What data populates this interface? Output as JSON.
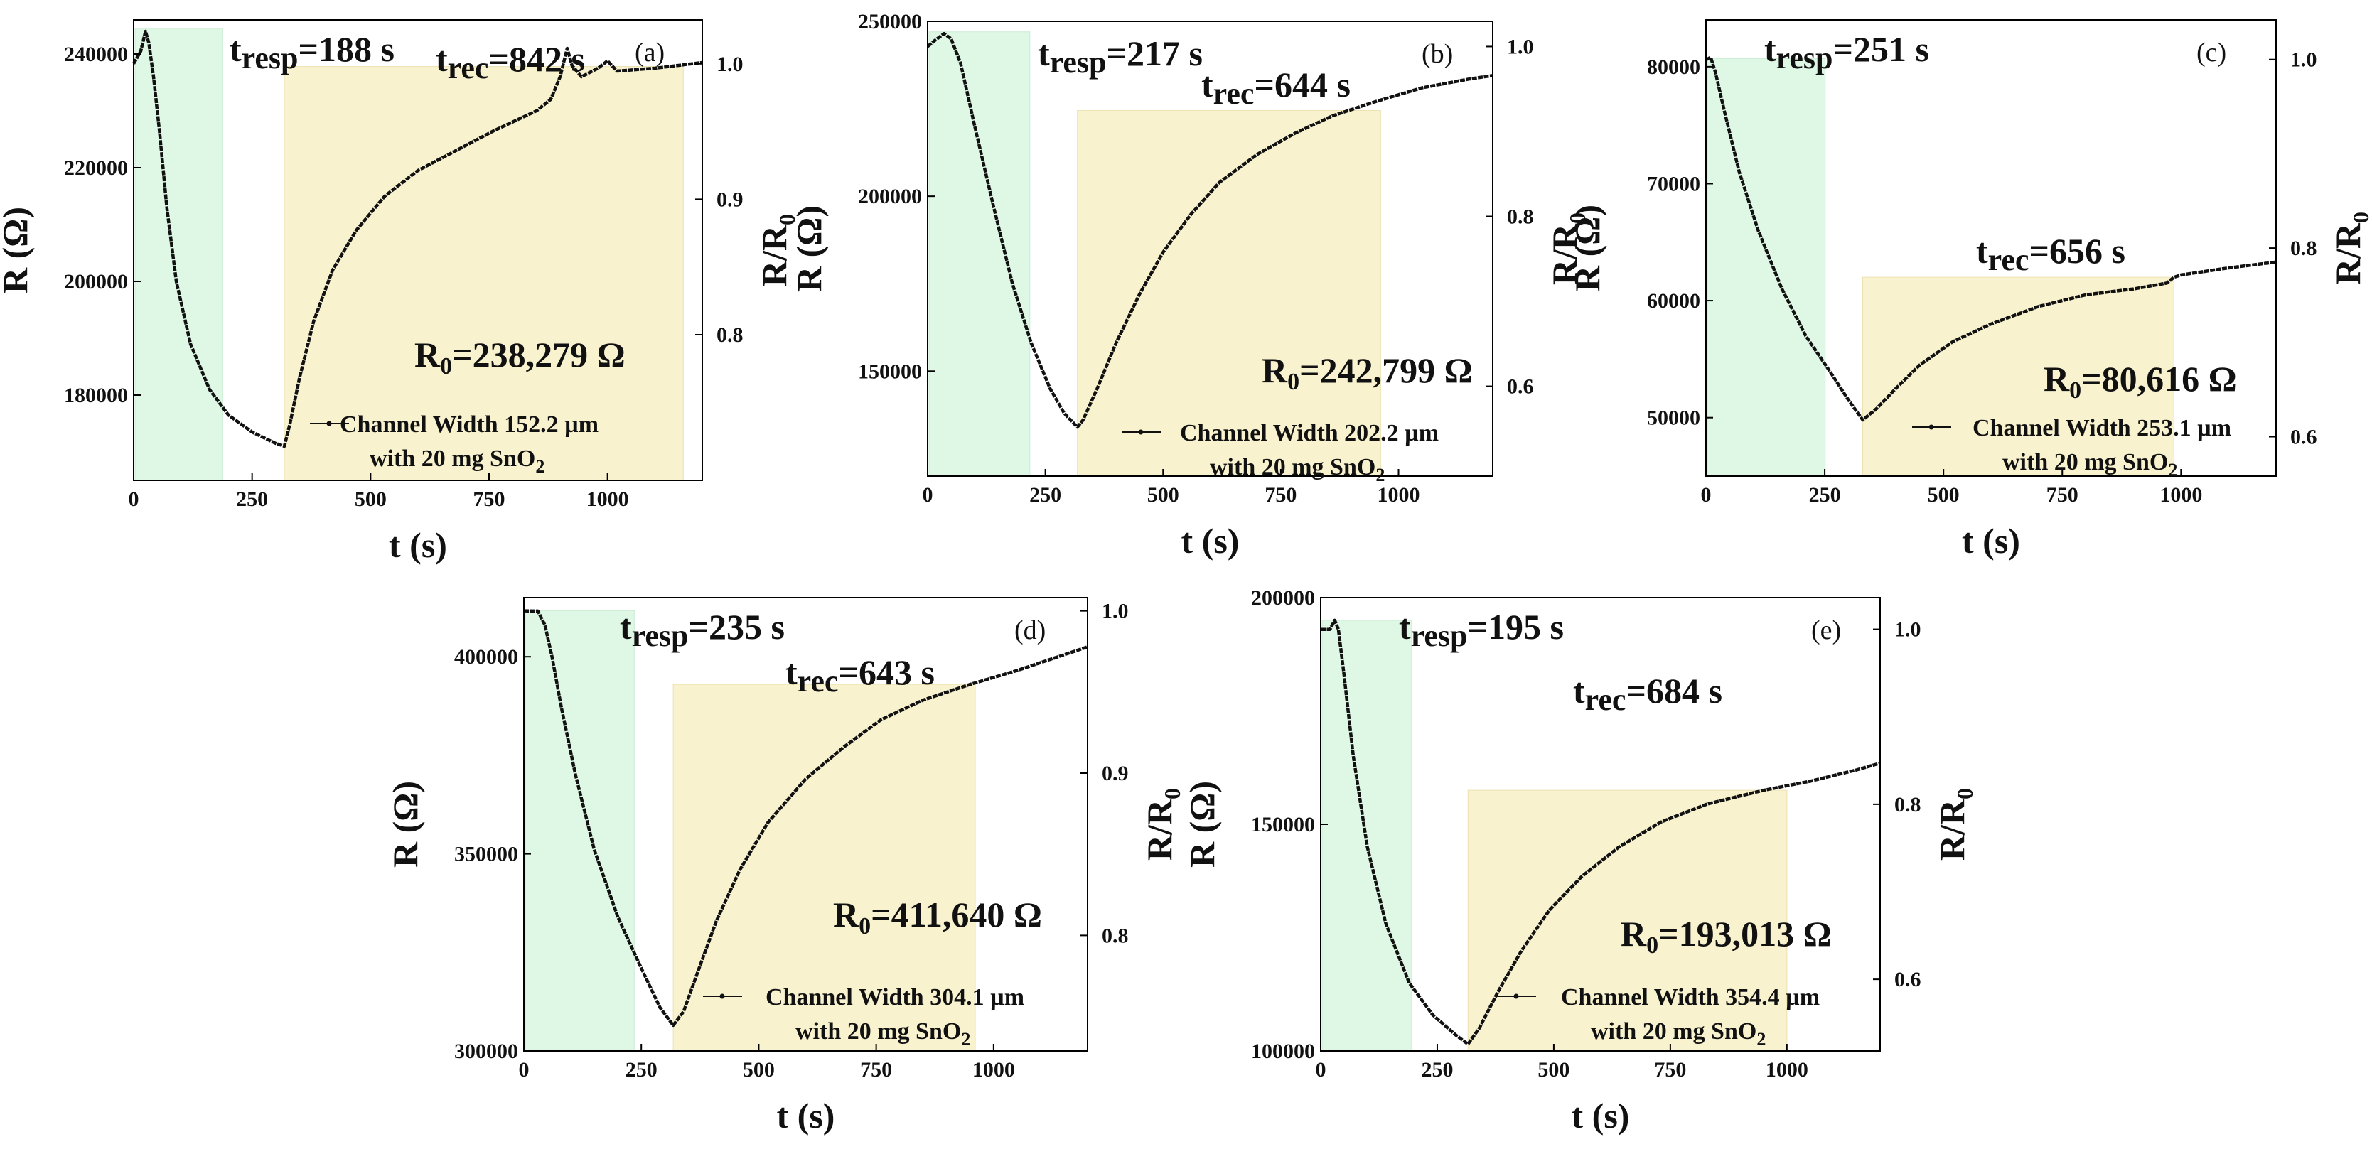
{
  "chart_data": [
    {
      "panel": "(a)",
      "type": "line",
      "xlabel": "t (s)",
      "ylabel": "R (Ω)",
      "y2label": "R/R0",
      "xlim": [
        0,
        1200
      ],
      "ylim": [
        165000,
        246000
      ],
      "xticks": [
        0,
        250,
        500,
        750,
        1000
      ],
      "xtick_labels": [
        "0",
        "250",
        "500",
        "750",
        "1000"
      ],
      "yticks": [
        180000,
        200000,
        220000,
        240000
      ],
      "ytick_labels": [
        "180000",
        "200000",
        "220000",
        "240000"
      ],
      "y2ticks": [
        0.8,
        0.9,
        1.0
      ],
      "y2tick_labels": [
        "0.8",
        "0.9",
        "1.0"
      ],
      "R0": 238279,
      "t_resp": 188,
      "t_rec": 842,
      "t_resp_label": "resp",
      "t_rec_label": "rec",
      "t_resp_value": "=188 s",
      "t_rec_value": "=842 s",
      "R0_label": "=238,279 Ω",
      "legend": {
        "line1": "Channel Width 152.2 µm",
        "line2_prefix": "with 20 mg SnO",
        "line2_sub": "2"
      },
      "resp_region": {
        "x": [
          0,
          188
        ],
        "y": [
          170000,
          244500
        ]
      },
      "rec_region": {
        "x": [
          318,
          1160
        ],
        "y": [
          170000,
          237800
        ]
      },
      "curve": [
        [
          0,
          238300
        ],
        [
          15,
          240500
        ],
        [
          25,
          244000
        ],
        [
          32,
          242000
        ],
        [
          42,
          236000
        ],
        [
          55,
          226000
        ],
        [
          70,
          213000
        ],
        [
          90,
          200000
        ],
        [
          120,
          189000
        ],
        [
          160,
          181000
        ],
        [
          200,
          176500
        ],
        [
          250,
          173500
        ],
        [
          300,
          171500
        ],
        [
          318,
          171000
        ],
        [
          330,
          175000
        ],
        [
          350,
          183000
        ],
        [
          380,
          193000
        ],
        [
          420,
          202000
        ],
        [
          470,
          209000
        ],
        [
          530,
          215000
        ],
        [
          600,
          219500
        ],
        [
          680,
          223000
        ],
        [
          760,
          226500
        ],
        [
          850,
          230000
        ],
        [
          880,
          232000
        ],
        [
          900,
          236000
        ],
        [
          915,
          241000
        ],
        [
          925,
          238000
        ],
        [
          945,
          236000
        ],
        [
          980,
          237500
        ],
        [
          1000,
          238800
        ],
        [
          1020,
          237000
        ],
        [
          1100,
          237500
        ],
        [
          1200,
          238500
        ]
      ]
    },
    {
      "panel": "(b)",
      "type": "line",
      "xlabel": "t (s)",
      "ylabel": "R (Ω)",
      "y2label": "R/R0",
      "xlim": [
        0,
        1200
      ],
      "ylim": [
        120000,
        250000
      ],
      "xticks": [
        0,
        250,
        500,
        750,
        1000
      ],
      "xtick_labels": [
        "0",
        "250",
        "500",
        "750",
        "1000"
      ],
      "yticks": [
        150000,
        200000,
        250000
      ],
      "ytick_labels": [
        "150000",
        "200000",
        "250000"
      ],
      "y2ticks": [
        0.6,
        0.8,
        1.0
      ],
      "y2tick_labels": [
        "0.6",
        "0.8",
        "1.0"
      ],
      "R0": 242799,
      "t_resp": 217,
      "t_rec": 644,
      "t_resp_label": "resp",
      "t_rec_label": "rec",
      "t_resp_value": "=217 s",
      "t_rec_value": "=644 s",
      "R0_label": "=242,799 Ω",
      "legend": {
        "line1": "Channel Width 202.2 µm",
        "line2_prefix": "with 20 mg SnO",
        "line2_sub": "2"
      },
      "resp_region": {
        "x": [
          0,
          217
        ],
        "y": [
          120000,
          247000
        ]
      },
      "rec_region": {
        "x": [
          318,
          962
        ],
        "y": [
          120000,
          224500
        ]
      },
      "curve": [
        [
          0,
          242800
        ],
        [
          15,
          244500
        ],
        [
          35,
          246500
        ],
        [
          50,
          245000
        ],
        [
          70,
          238000
        ],
        [
          100,
          220000
        ],
        [
          140,
          197000
        ],
        [
          180,
          175000
        ],
        [
          220,
          158000
        ],
        [
          260,
          145000
        ],
        [
          290,
          138000
        ],
        [
          318,
          134000
        ],
        [
          330,
          136000
        ],
        [
          360,
          145000
        ],
        [
          400,
          158000
        ],
        [
          450,
          172000
        ],
        [
          500,
          184000
        ],
        [
          560,
          195000
        ],
        [
          620,
          204000
        ],
        [
          700,
          212000
        ],
        [
          780,
          218000
        ],
        [
          860,
          223000
        ],
        [
          950,
          227000
        ],
        [
          1050,
          231000
        ],
        [
          1150,
          233500
        ],
        [
          1200,
          234500
        ]
      ]
    },
    {
      "panel": "(c)",
      "type": "line",
      "xlabel": "t (s)",
      "ylabel": "R (Ω)",
      "y2label": "R/R0",
      "xlim": [
        0,
        1200
      ],
      "ylim": [
        45000,
        84000
      ],
      "xticks": [
        0,
        250,
        500,
        750,
        1000
      ],
      "xtick_labels": [
        "0",
        "250",
        "500",
        "750",
        "1000"
      ],
      "yticks": [
        50000,
        60000,
        70000,
        80000
      ],
      "ytick_labels": [
        "50000",
        "60000",
        "70000",
        "80000"
      ],
      "y2ticks": [
        0.6,
        0.8,
        1.0
      ],
      "y2tick_labels": [
        "0.6",
        "0.8",
        "1.0"
      ],
      "R0": 80616,
      "t_resp": 251,
      "t_rec": 656,
      "t_resp_label": "resp",
      "t_rec_label": "rec",
      "t_resp_value": "=251 s",
      "t_rec_value": "=656 s",
      "R0_label": "=80,616 Ω",
      "legend": {
        "line1": "Channel Width 253.1 µm",
        "line2_prefix": "with 20 mg SnO",
        "line2_sub": "2"
      },
      "resp_region": {
        "x": [
          0,
          251
        ],
        "y": [
          45000,
          80700
        ]
      },
      "rec_region": {
        "x": [
          330,
          985
        ],
        "y": [
          45000,
          62000
        ]
      },
      "curve": [
        [
          0,
          80600
        ],
        [
          10,
          80800
        ],
        [
          20,
          79500
        ],
        [
          40,
          76000
        ],
        [
          70,
          71000
        ],
        [
          110,
          66000
        ],
        [
          160,
          61000
        ],
        [
          210,
          57000
        ],
        [
          260,
          54000
        ],
        [
          300,
          51500
        ],
        [
          330,
          49800
        ],
        [
          360,
          50800
        ],
        [
          400,
          52500
        ],
        [
          450,
          54500
        ],
        [
          520,
          56500
        ],
        [
          600,
          58000
        ],
        [
          700,
          59500
        ],
        [
          800,
          60500
        ],
        [
          900,
          61000
        ],
        [
          970,
          61500
        ],
        [
          985,
          62000
        ],
        [
          1000,
          62200
        ],
        [
          1100,
          62800
        ],
        [
          1200,
          63300
        ]
      ]
    },
    {
      "panel": "(d)",
      "type": "line",
      "xlabel": "t (s)",
      "ylabel": "R (Ω)",
      "y2label": "R/R0",
      "xlim": [
        0,
        1200
      ],
      "ylim": [
        300000,
        415000
      ],
      "xticks": [
        0,
        250,
        500,
        750,
        1000
      ],
      "xtick_labels": [
        "0",
        "250",
        "500",
        "750",
        "1000"
      ],
      "yticks": [
        300000,
        350000,
        400000
      ],
      "ytick_labels": [
        "300000",
        "350000",
        "400000"
      ],
      "y2ticks": [
        0.8,
        0.9,
        1.0
      ],
      "y2tick_labels": [
        "0.8",
        "0.9",
        "1.0"
      ],
      "R0": 411640,
      "t_resp": 235,
      "t_rec": 643,
      "t_resp_label": "resp",
      "t_rec_label": "rec",
      "t_resp_value": "=235 s",
      "t_rec_value": "=643 s",
      "R0_label": "=411,640 Ω",
      "legend": {
        "line1": "Channel Width 304.1 µm",
        "line2_prefix": "with 20 mg SnO",
        "line2_sub": "2"
      },
      "resp_region": {
        "x": [
          0,
          235
        ],
        "y": [
          300000,
          411700
        ]
      },
      "rec_region": {
        "x": [
          318,
          961
        ],
        "y": [
          300000,
          393000
        ]
      },
      "curve": [
        [
          0,
          411640
        ],
        [
          30,
          411600
        ],
        [
          45,
          408000
        ],
        [
          60,
          400000
        ],
        [
          80,
          387000
        ],
        [
          110,
          370000
        ],
        [
          150,
          351000
        ],
        [
          200,
          334000
        ],
        [
          250,
          321000
        ],
        [
          290,
          311000
        ],
        [
          318,
          306500
        ],
        [
          340,
          310000
        ],
        [
          370,
          320000
        ],
        [
          410,
          333000
        ],
        [
          460,
          346000
        ],
        [
          520,
          358000
        ],
        [
          600,
          369000
        ],
        [
          680,
          377000
        ],
        [
          760,
          384000
        ],
        [
          850,
          389000
        ],
        [
          950,
          393000
        ],
        [
          1050,
          396500
        ],
        [
          1150,
          400500
        ],
        [
          1200,
          402500
        ]
      ]
    },
    {
      "panel": "(e)",
      "type": "line",
      "xlabel": "t (s)",
      "ylabel": "R (Ω)",
      "y2label": "R/R0",
      "xlim": [
        0,
        1200
      ],
      "ylim": [
        100000,
        200000
      ],
      "xticks": [
        0,
        250,
        500,
        750,
        1000
      ],
      "xtick_labels": [
        "0",
        "250",
        "500",
        "750",
        "1000"
      ],
      "yticks": [
        100000,
        150000,
        200000
      ],
      "ytick_labels": [
        "100000",
        "150000",
        "200000"
      ],
      "y2ticks": [
        0.6,
        0.8,
        1.0
      ],
      "y2tick_labels": [
        "0.6",
        "0.8",
        "1.0"
      ],
      "R0": 193013,
      "t_resp": 195,
      "t_rec": 684,
      "t_resp_label": "resp",
      "t_rec_label": "rec",
      "t_resp_value": "=195 s",
      "t_rec_value": "=684 s",
      "R0_label": "=193,013 Ω",
      "legend": {
        "line1": "Channel Width 354.4 µm",
        "line2_prefix": "with 20 mg SnO",
        "line2_sub": "2"
      },
      "resp_region": {
        "x": [
          0,
          195
        ],
        "y": [
          100000,
          195000
        ]
      },
      "rec_region": {
        "x": [
          316,
          1000
        ],
        "y": [
          100000,
          157500
        ]
      },
      "curve": [
        [
          0,
          193000
        ],
        [
          20,
          193000
        ],
        [
          30,
          195000
        ],
        [
          38,
          193000
        ],
        [
          50,
          183000
        ],
        [
          70,
          165000
        ],
        [
          100,
          145000
        ],
        [
          140,
          128000
        ],
        [
          190,
          115000
        ],
        [
          240,
          108000
        ],
        [
          290,
          103500
        ],
        [
          316,
          101500
        ],
        [
          340,
          105000
        ],
        [
          380,
          113000
        ],
        [
          430,
          122000
        ],
        [
          490,
          131000
        ],
        [
          560,
          138500
        ],
        [
          640,
          145000
        ],
        [
          730,
          150500
        ],
        [
          830,
          154500
        ],
        [
          950,
          157500
        ],
        [
          1050,
          159500
        ],
        [
          1150,
          162000
        ],
        [
          1200,
          163500
        ]
      ]
    }
  ],
  "colors": {
    "resp_fill": "#dff8e5",
    "rec_fill": "#f8f2cf",
    "curve": "#111111",
    "axis": "#000000"
  }
}
